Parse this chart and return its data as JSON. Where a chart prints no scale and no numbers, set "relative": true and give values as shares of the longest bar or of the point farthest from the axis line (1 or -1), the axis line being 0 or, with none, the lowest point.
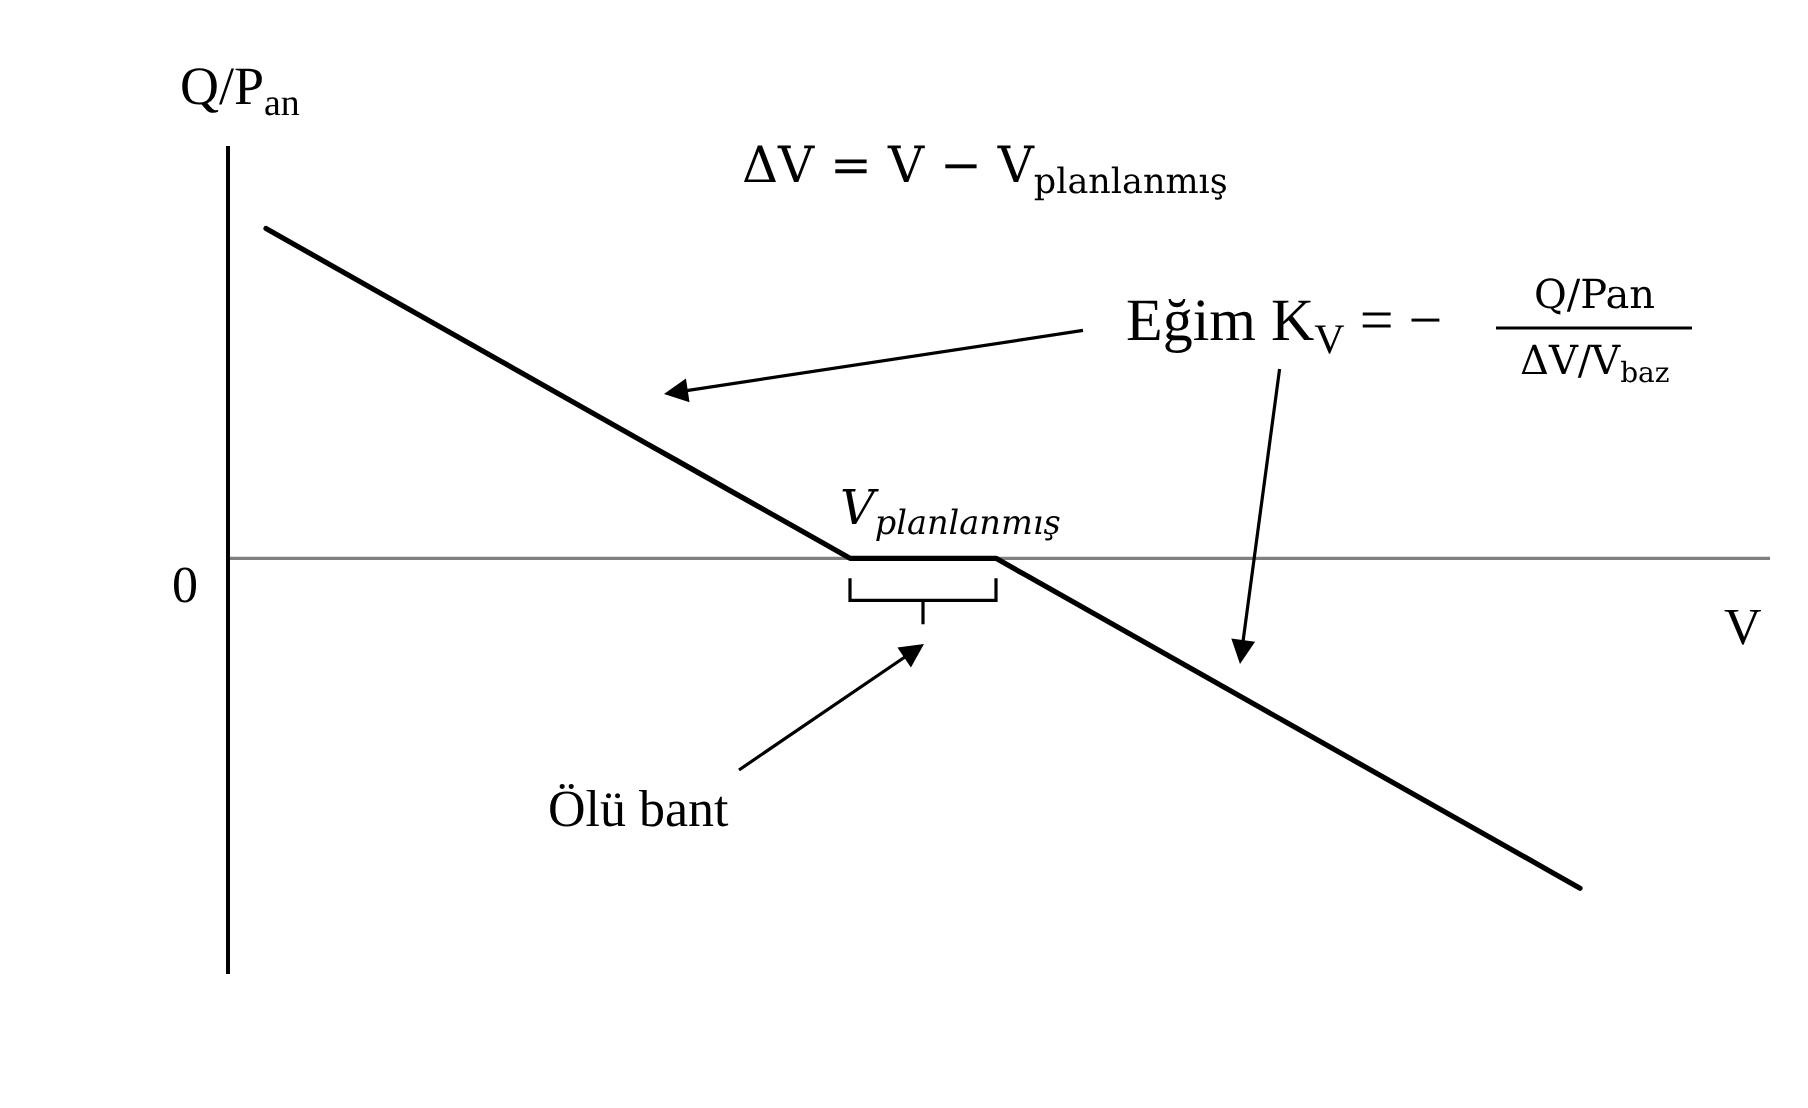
{
  "chart_data": {
    "type": "line",
    "relative": true,
    "xlabel": "V",
    "ylabel": "Q/P$_{an}$",
    "categories": [
      null,
      null,
      null,
      null,
      null,
      null,
      null,
      null,
      null,
      null,
      null,
      null,
      null,
      null,
      null,
      null,
      null,
      null,
      null,
      null,
      null,
      null,
      null,
      null,
      null,
      null,
      null,
      null,
      null,
      null,
      null,
      null,
      null,
      null,
      null,
      null,
      null,
      null,
      null,
      null,
      null,
      null,
      null,
      null,
      null,
      null
    ],
    "series": [
      {
        "color": "#000000",
        "values": [
          1,
          0.95,
          0.9,
          0.85,
          0.8,
          0.75,
          0.7,
          0.65,
          0.6,
          0.55,
          0.5,
          0.45,
          0.4,
          0.35,
          0.3,
          0.25,
          0.2,
          0.15,
          0.1,
          0.05,
          0,
          0,
          0,
          0,
          0,
          0,
          -0.05,
          -0.1,
          -0.15,
          -0.2,
          -0.25,
          -0.3,
          -0.35,
          -0.4,
          -0.45,
          -0.5,
          -0.55,
          -0.6,
          -0.65,
          -0.7,
          -0.75,
          -0.8,
          -0.85,
          -0.9,
          -0.95,
          -1
        ]
      }
    ],
    "line_style": "solid",
    "ref_lines": [
      {
        "axis": "y",
        "value": 0,
        "label": "0",
        "color": "#808080"
      }
    ],
    "annotations": [
      "ΔV = V − V$_{planlanmış}$",
      "Eğim K$_{V}$ = −",
      "Q/Pan",
      "ΔV/V$_{baz}$",
      "V$_{planlanmış}$",
      "Ölü bant"
    ]
  }
}
